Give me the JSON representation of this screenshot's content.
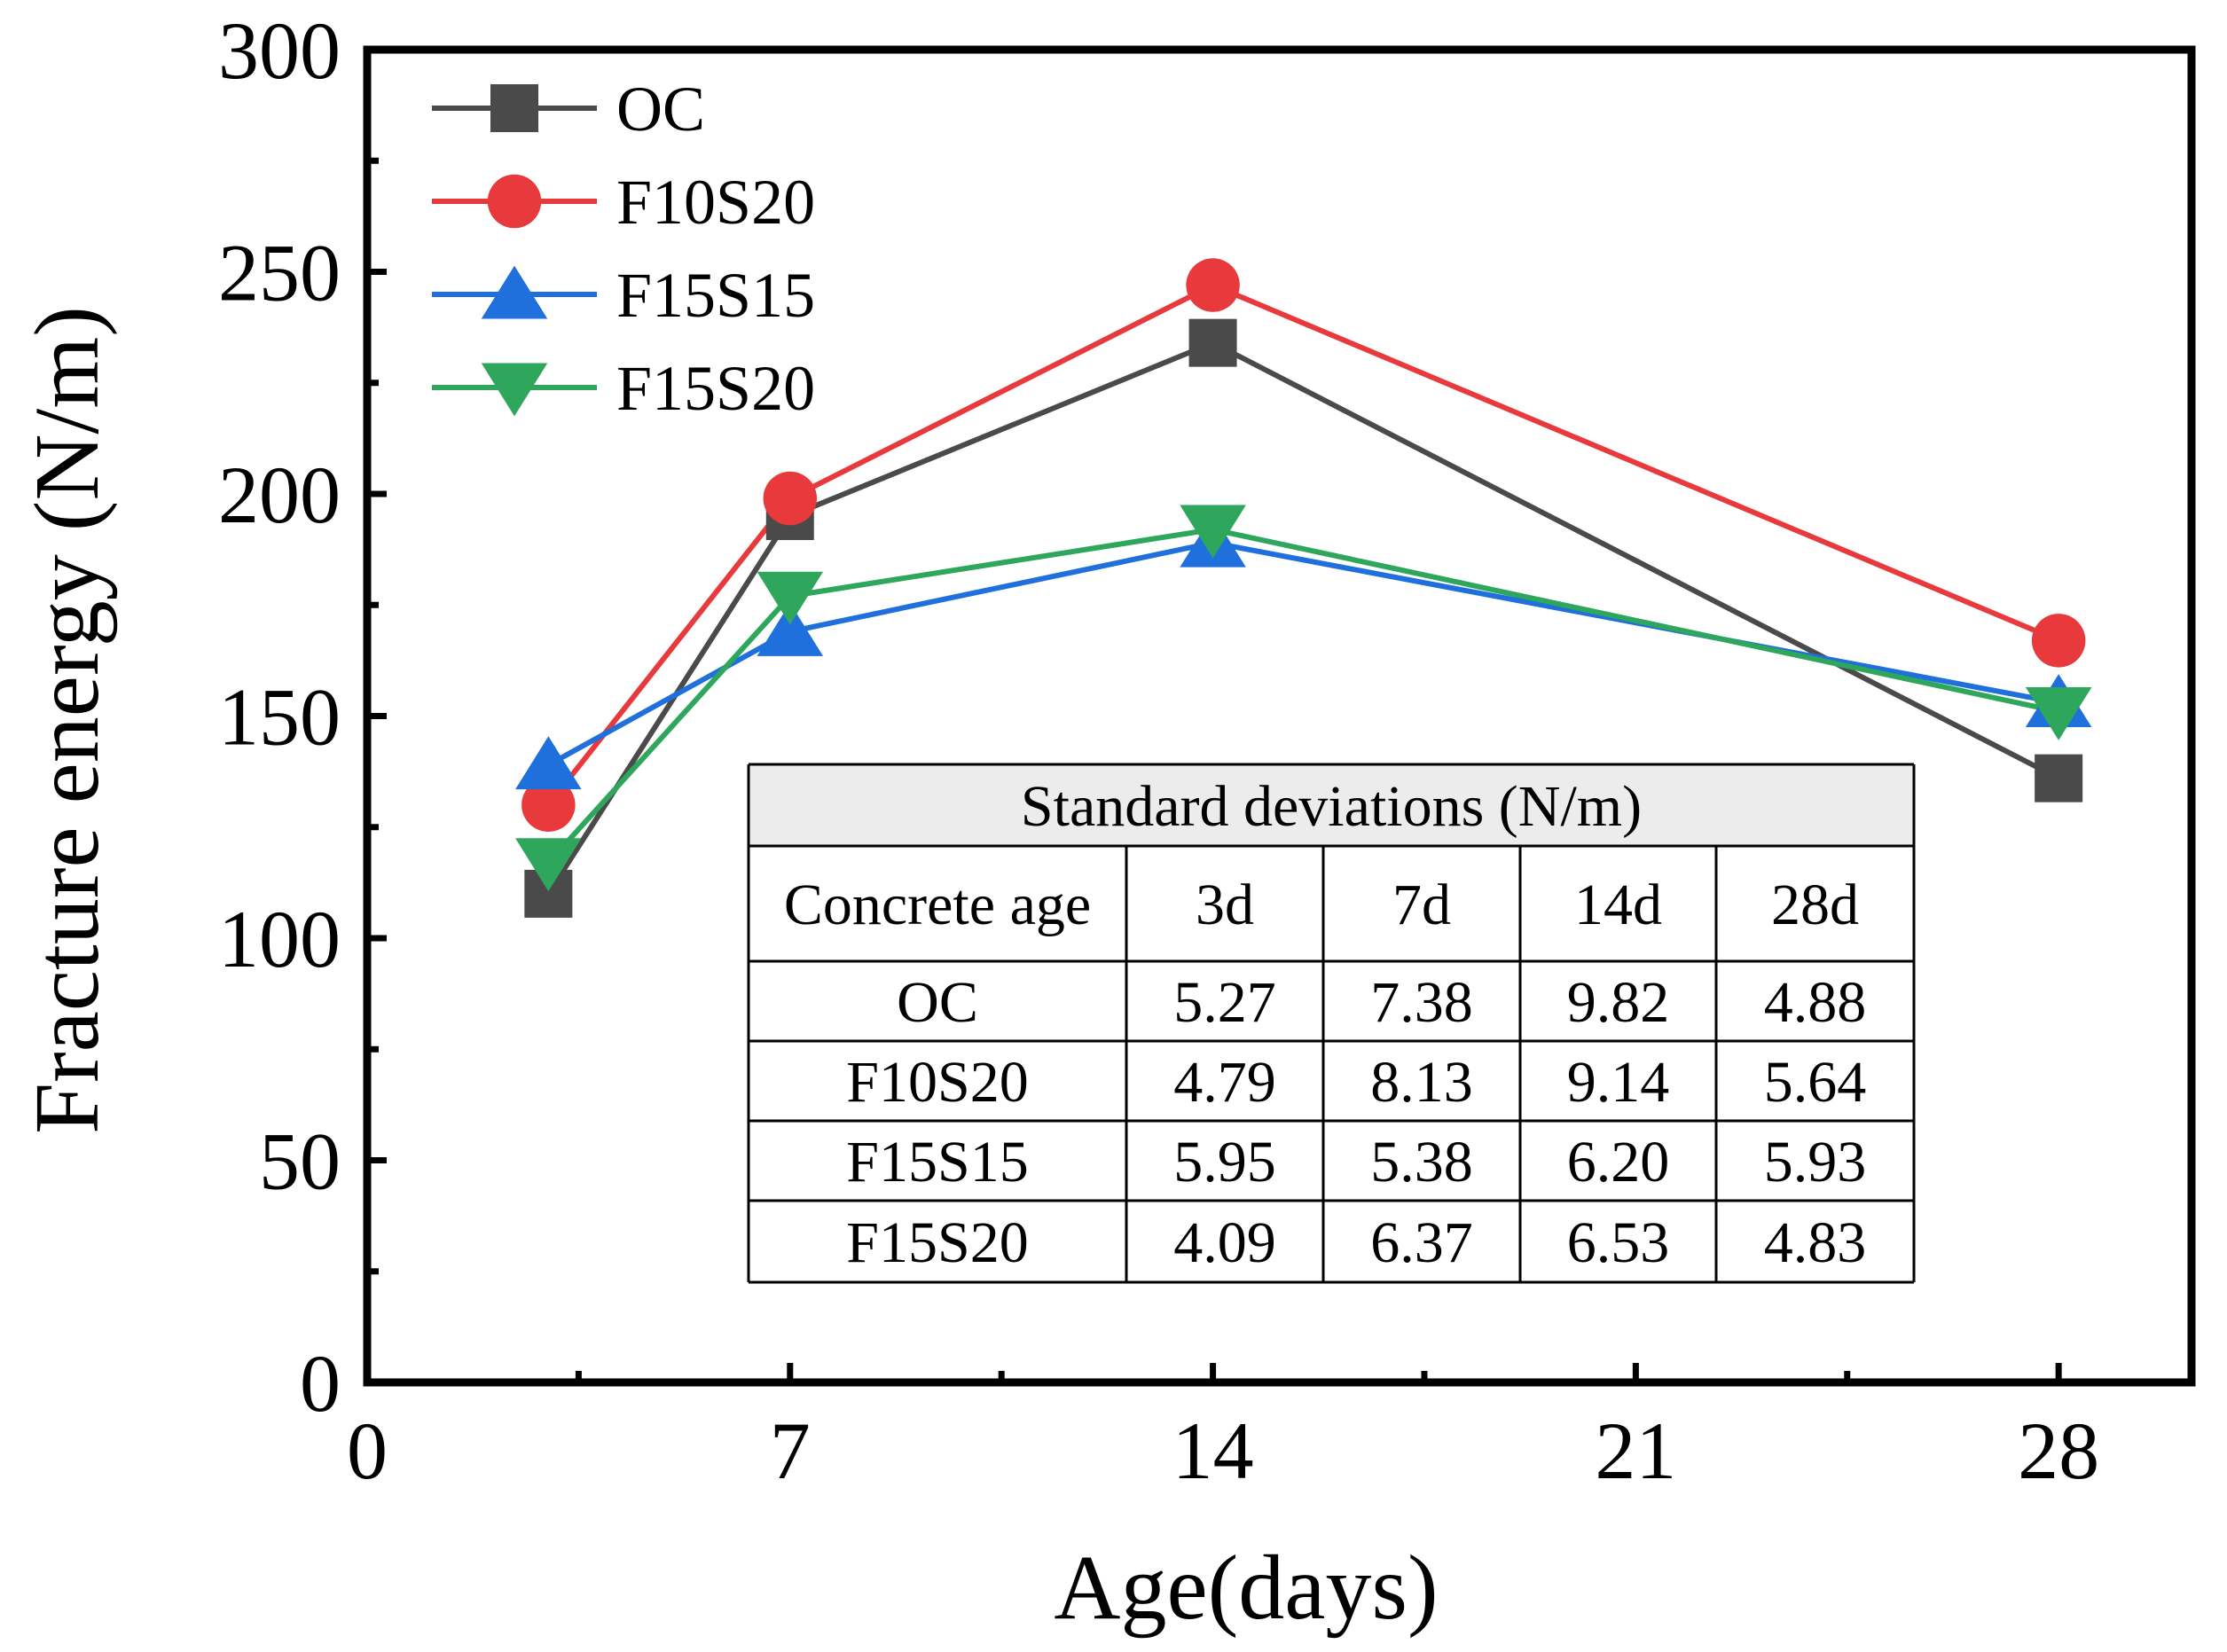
{
  "chart_data": {
    "type": "line",
    "title": "",
    "xlabel": "Age(days)",
    "ylabel": "Fracture energy (N/m)",
    "xlim": [
      0,
      30.2
    ],
    "ylim": [
      0,
      300
    ],
    "x_ticks": [
      0,
      7,
      14,
      21,
      28
    ],
    "x_tick_labels": [
      "0",
      "7",
      "14",
      "21",
      "28"
    ],
    "y_ticks": [
      0,
      50,
      100,
      150,
      200,
      250,
      300
    ],
    "y_tick_labels": [
      "0",
      "50",
      "100",
      "150",
      "200",
      "250",
      "300"
    ],
    "grid": false,
    "legend_position": "top-left",
    "x": [
      3,
      7,
      14,
      28
    ],
    "series": [
      {
        "name": "OC",
        "marker": "square",
        "color": "#4a4a4a",
        "values": [
          110,
          195,
          234,
          136
        ]
      },
      {
        "name": "F10S20",
        "marker": "circle",
        "color": "#e8393d",
        "values": [
          130,
          199,
          247,
          167
        ]
      },
      {
        "name": "F15S15",
        "marker": "triangle-up",
        "color": "#1f6fdc",
        "values": [
          139,
          169,
          189,
          153
        ]
      },
      {
        "name": "F15S20",
        "marker": "triangle-down",
        "color": "#2ea65b",
        "values": [
          117,
          177,
          192,
          151
        ]
      }
    ],
    "inset_table": {
      "title": "Standard deviations (N/m)",
      "header": [
        "Concrete age",
        "3d",
        "7d",
        "14d",
        "28d"
      ],
      "rows": [
        [
          "OC",
          "5.27",
          "7.38",
          "9.82",
          "4.88"
        ],
        [
          "F10S20",
          "4.79",
          "8.13",
          "9.14",
          "5.64"
        ],
        [
          "F15S15",
          "5.95",
          "5.38",
          "6.20",
          "5.93"
        ],
        [
          "F15S20",
          "4.09",
          "6.37",
          "6.53",
          "4.83"
        ]
      ]
    }
  }
}
